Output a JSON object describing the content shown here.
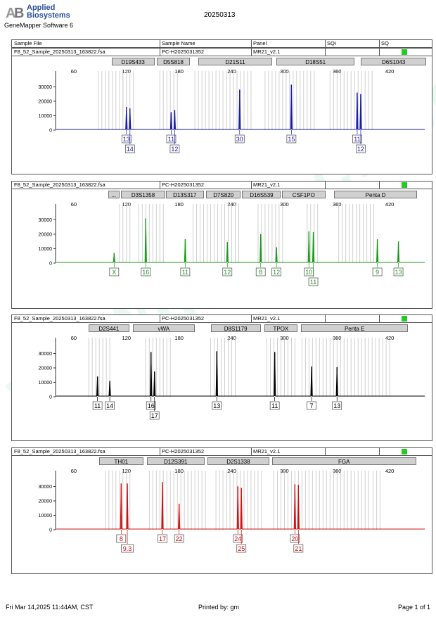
{
  "brand": {
    "line1": "Applied",
    "line2": "Biosystems",
    "software": "GeneMapper Software 6"
  },
  "report_title": "20250313",
  "columns": [
    "Sample File",
    "Sample Name",
    "Panel",
    "SQI",
    "SQ"
  ],
  "watermark": "www.proteck.com.cn",
  "footer": {
    "date": "Fri Mar 14,2025 11:44AM, CST",
    "printed_by": "Printed by: gm",
    "page": "Page 1 of 1"
  },
  "chart_data": [
    {
      "type": "line",
      "sample_file": "F8_52_Sample_20250313_163822.fsa",
      "sample_name": "PC-H2025031352",
      "panel": "MR21_v2.1",
      "color": "#1a1aa6",
      "x_ticks": [
        60,
        120,
        180,
        240,
        300,
        360,
        420
      ],
      "y_ticks": [
        0,
        10000,
        20000,
        30000
      ],
      "xlim": [
        40,
        460
      ],
      "ylim": [
        0,
        38000
      ],
      "markers": [
        {
          "name": "D19S433",
          "start": 103,
          "end": 152
        },
        {
          "name": "D5S818",
          "start": 155,
          "end": 192
        },
        {
          "name": "D21S11",
          "start": 202,
          "end": 286
        },
        {
          "name": "D18S51",
          "start": 291,
          "end": 380
        },
        {
          "name": "D6S1043",
          "start": 387,
          "end": 462
        }
      ],
      "peaks": [
        {
          "x": 120,
          "y": 16000
        },
        {
          "x": 124,
          "y": 15000
        },
        {
          "x": 171,
          "y": 12500
        },
        {
          "x": 175,
          "y": 14000
        },
        {
          "x": 249,
          "y": 28000
        },
        {
          "x": 308,
          "y": 31500
        },
        {
          "x": 383,
          "y": 26000
        },
        {
          "x": 387,
          "y": 25000
        }
      ],
      "alleles": [
        {
          "label": "13",
          "x": 120,
          "row": 1
        },
        {
          "label": "14",
          "x": 124,
          "row": 2
        },
        {
          "label": "11",
          "x": 171,
          "row": 1
        },
        {
          "label": "12",
          "x": 175,
          "row": 2
        },
        {
          "label": "30",
          "x": 249,
          "row": 1
        },
        {
          "label": "15",
          "x": 308,
          "row": 1
        },
        {
          "label": "11",
          "x": 383,
          "row": 1
        },
        {
          "label": "12",
          "x": 387,
          "row": 2
        }
      ],
      "bins": [
        [
          88,
          118
        ],
        [
          116,
          130
        ],
        [
          158,
          178
        ],
        [
          198,
          262
        ],
        [
          278,
          336
        ],
        [
          352,
          402
        ]
      ]
    },
    {
      "type": "line",
      "sample_file": "F8_52_Sample_20250313_163822.fsa",
      "sample_name": "PC-H2025031352",
      "panel": "MR21_v2.1",
      "color": "#1a9a1a",
      "x_ticks": [
        60,
        120,
        180,
        240,
        300,
        360,
        420
      ],
      "y_ticks": [
        0,
        10000,
        20000,
        30000
      ],
      "xlim": [
        40,
        460
      ],
      "ylim": [
        0,
        38000
      ],
      "markers": [
        {
          "name": "...",
          "start": 99,
          "end": 112
        },
        {
          "name": "D3S1358",
          "start": 114,
          "end": 164
        },
        {
          "name": "D13S317",
          "start": 165,
          "end": 208
        },
        {
          "name": "D7S820",
          "start": 211,
          "end": 250
        },
        {
          "name": "D16S539",
          "start": 252,
          "end": 296
        },
        {
          "name": "CSF1PO",
          "start": 297,
          "end": 347
        },
        {
          "name": "Penta D",
          "start": 357,
          "end": 451
        }
      ],
      "peaks": [
        {
          "x": 106,
          "y": 7000
        },
        {
          "x": 142,
          "y": 31000
        },
        {
          "x": 187,
          "y": 16500
        },
        {
          "x": 235,
          "y": 14500
        },
        {
          "x": 273,
          "y": 20000
        },
        {
          "x": 291,
          "y": 11000
        },
        {
          "x": 328,
          "y": 22000
        },
        {
          "x": 333,
          "y": 21500
        },
        {
          "x": 406,
          "y": 16500
        },
        {
          "x": 430,
          "y": 15000
        }
      ],
      "alleles": [
        {
          "label": "X",
          "x": 106,
          "row": 1
        },
        {
          "label": "16",
          "x": 142,
          "row": 1
        },
        {
          "label": "11",
          "x": 187,
          "row": 1
        },
        {
          "label": "12",
          "x": 235,
          "row": 1
        },
        {
          "label": "8",
          "x": 273,
          "row": 1
        },
        {
          "label": "12",
          "x": 291,
          "row": 1
        },
        {
          "label": "10",
          "x": 328,
          "row": 1
        },
        {
          "label": "11",
          "x": 333,
          "row": 2
        },
        {
          "label": "9",
          "x": 406,
          "row": 1
        },
        {
          "label": "13",
          "x": 430,
          "row": 1
        }
      ],
      "bins": [
        [
          112,
          124
        ],
        [
          134,
          162
        ],
        [
          196,
          250
        ],
        [
          270,
          298
        ],
        [
          326,
          340
        ],
        [
          362,
          402
        ]
      ]
    },
    {
      "type": "line",
      "sample_file": "F8_52_Sample_20250313_163822.fsa",
      "sample_name": "PC-H2025031352",
      "panel": "MR21_v2.1",
      "color": "#000000",
      "x_ticks": [
        60,
        120,
        180,
        240,
        300,
        360,
        420
      ],
      "y_ticks": [
        0,
        10000,
        20000,
        30000
      ],
      "xlim": [
        40,
        460
      ],
      "ylim": [
        0,
        38000
      ],
      "markers": [
        {
          "name": "D2S441",
          "start": 77,
          "end": 123
        },
        {
          "name": "vWA",
          "start": 127,
          "end": 198
        },
        {
          "name": "D8S1179",
          "start": 216,
          "end": 273
        },
        {
          "name": "TPOX",
          "start": 277,
          "end": 315
        },
        {
          "name": "Penta E",
          "start": 319,
          "end": 441
        }
      ],
      "peaks": [
        {
          "x": 87,
          "y": 14000
        },
        {
          "x": 101,
          "y": 11000
        },
        {
          "x": 148,
          "y": 31000
        },
        {
          "x": 152,
          "y": 17500
        },
        {
          "x": 223,
          "y": 31500
        },
        {
          "x": 289,
          "y": 31000
        },
        {
          "x": 331,
          "y": 21000
        },
        {
          "x": 360,
          "y": 20500
        }
      ],
      "alleles": [
        {
          "label": "11",
          "x": 87,
          "row": 1
        },
        {
          "label": "14",
          "x": 101,
          "row": 1
        },
        {
          "label": "16",
          "x": 148,
          "row": 1
        },
        {
          "label": "17",
          "x": 152,
          "row": 2
        },
        {
          "label": "13",
          "x": 223,
          "row": 1
        },
        {
          "label": "11",
          "x": 289,
          "row": 1
        },
        {
          "label": "7",
          "x": 331,
          "row": 1
        },
        {
          "label": "13",
          "x": 360,
          "row": 1
        }
      ],
      "bins": [
        [
          77,
          104
        ],
        [
          142,
          171
        ],
        [
          216,
          246
        ],
        [
          280,
          312
        ],
        [
          320,
          420
        ]
      ]
    },
    {
      "type": "line",
      "sample_file": "F8_52_Sample_20250313_163822.fsa",
      "sample_name": "PC-H2025031352",
      "panel": "MR21_v2.1",
      "color": "#cc1111",
      "x_ticks": [
        60,
        120,
        180,
        240,
        300,
        360,
        420
      ],
      "y_ticks": [
        0,
        10000,
        20000,
        30000
      ],
      "xlim": [
        40,
        460
      ],
      "ylim": [
        0,
        38000
      ],
      "markers": [
        {
          "name": "TH01",
          "start": 89,
          "end": 139
        },
        {
          "name": "D12S391",
          "start": 143,
          "end": 209
        },
        {
          "name": "D2S1338",
          "start": 212,
          "end": 283
        },
        {
          "name": "FGA",
          "start": 286,
          "end": 450
        }
      ],
      "peaks": [
        {
          "x": 114,
          "y": 32000
        },
        {
          "x": 121,
          "y": 32000
        },
        {
          "x": 161,
          "y": 33000
        },
        {
          "x": 180,
          "y": 18000
        },
        {
          "x": 247,
          "y": 30000
        },
        {
          "x": 251,
          "y": 29000
        },
        {
          "x": 312,
          "y": 31500
        },
        {
          "x": 316,
          "y": 31000
        }
      ],
      "alleles": [
        {
          "label": "8",
          "x": 114,
          "row": 1
        },
        {
          "label": "9.3",
          "x": 121,
          "row": 2
        },
        {
          "label": "17",
          "x": 161,
          "row": 1
        },
        {
          "label": "22",
          "x": 180,
          "row": 1
        },
        {
          "label": "24",
          "x": 247,
          "row": 1
        },
        {
          "label": "25",
          "x": 251,
          "row": 2
        },
        {
          "label": "20",
          "x": 312,
          "row": 1
        },
        {
          "label": "21",
          "x": 316,
          "row": 2
        }
      ],
      "bins": [
        [
          96,
          124
        ],
        [
          146,
          210
        ],
        [
          222,
          276
        ],
        [
          288,
          398
        ],
        [
          401,
          412
        ]
      ]
    }
  ]
}
